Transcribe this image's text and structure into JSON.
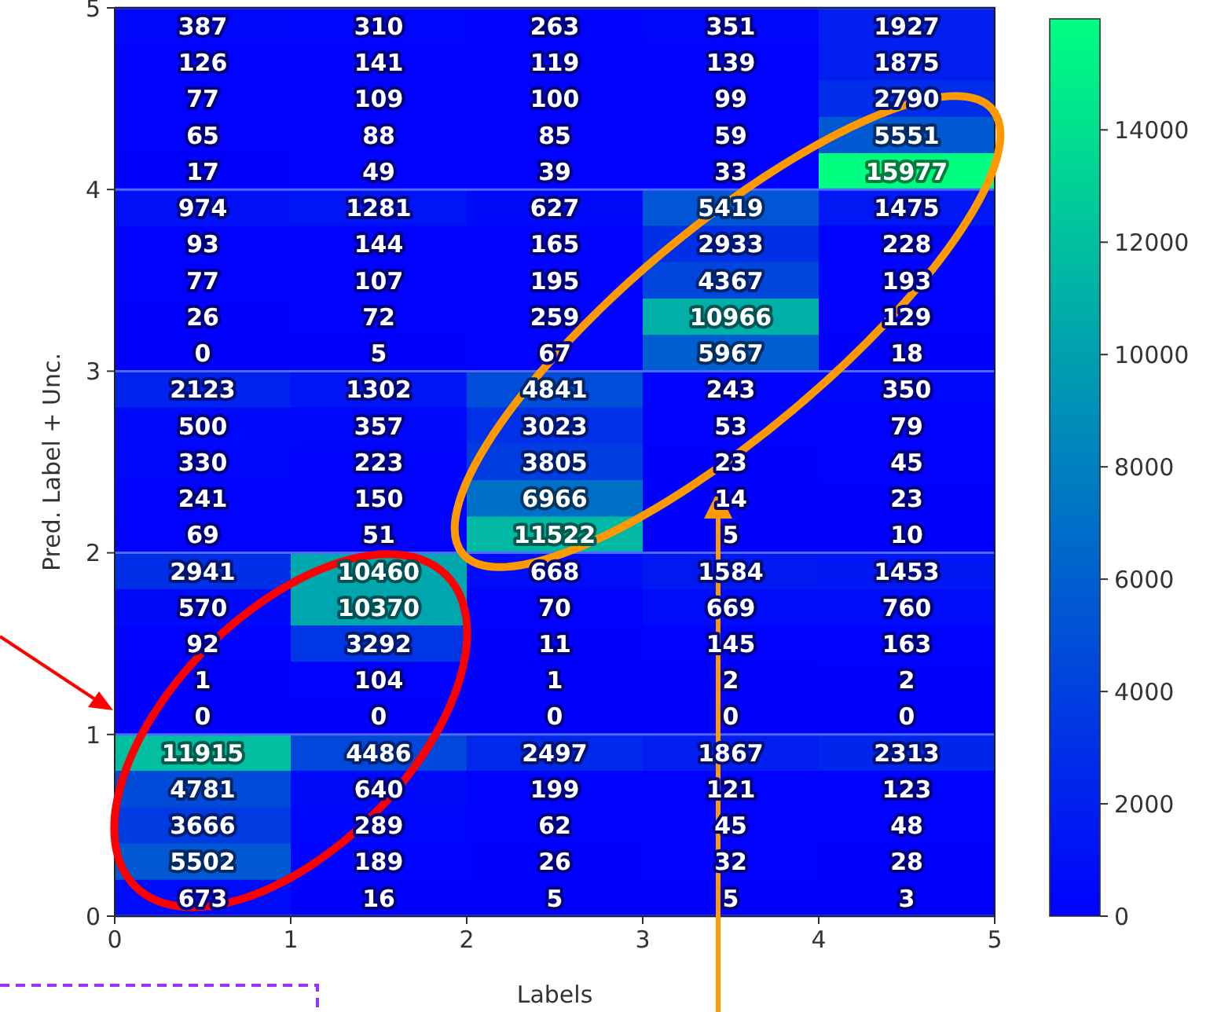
{
  "chart_data": {
    "type": "heatmap",
    "xlabel": "Labels",
    "ylabel": "Pred. Label + Unc.",
    "xlim": [
      0,
      5
    ],
    "xticks": [
      0,
      1,
      2,
      3,
      4,
      5
    ],
    "ylim": [
      0,
      5
    ],
    "yticks": [
      0,
      1,
      2,
      3,
      4,
      5
    ],
    "clim": [
      0,
      15977
    ],
    "cticks": [
      0,
      2000,
      4000,
      6000,
      8000,
      10000,
      12000,
      14000
    ],
    "grid": "y",
    "data_labels": true,
    "cells": [
      [
        387,
        310,
        263,
        351,
        1927
      ],
      [
        126,
        141,
        119,
        139,
        1875
      ],
      [
        77,
        109,
        100,
        99,
        2790
      ],
      [
        65,
        88,
        85,
        59,
        5551
      ],
      [
        17,
        49,
        39,
        33,
        15977
      ],
      [
        974,
        1281,
        627,
        5419,
        1475
      ],
      [
        93,
        144,
        165,
        2933,
        228
      ],
      [
        77,
        107,
        195,
        4367,
        193
      ],
      [
        26,
        72,
        259,
        10966,
        129
      ],
      [
        0,
        5,
        67,
        5967,
        18
      ],
      [
        2123,
        1302,
        4841,
        243,
        350
      ],
      [
        500,
        357,
        3023,
        53,
        79
      ],
      [
        330,
        223,
        3805,
        23,
        45
      ],
      [
        241,
        150,
        6966,
        14,
        23
      ],
      [
        69,
        51,
        11522,
        5,
        10
      ],
      [
        2941,
        10460,
        668,
        1584,
        1453
      ],
      [
        570,
        10370,
        70,
        669,
        760
      ],
      [
        92,
        3292,
        11,
        145,
        163
      ],
      [
        1,
        104,
        1,
        2,
        2
      ],
      [
        0,
        0,
        0,
        0,
        0
      ],
      [
        11915,
        4486,
        2497,
        1867,
        2313
      ],
      [
        4781,
        640,
        199,
        121,
        123
      ],
      [
        3666,
        289,
        62,
        45,
        48
      ],
      [
        5502,
        189,
        26,
        32,
        28
      ],
      [
        673,
        16,
        5,
        5,
        3
      ]
    ]
  }
}
